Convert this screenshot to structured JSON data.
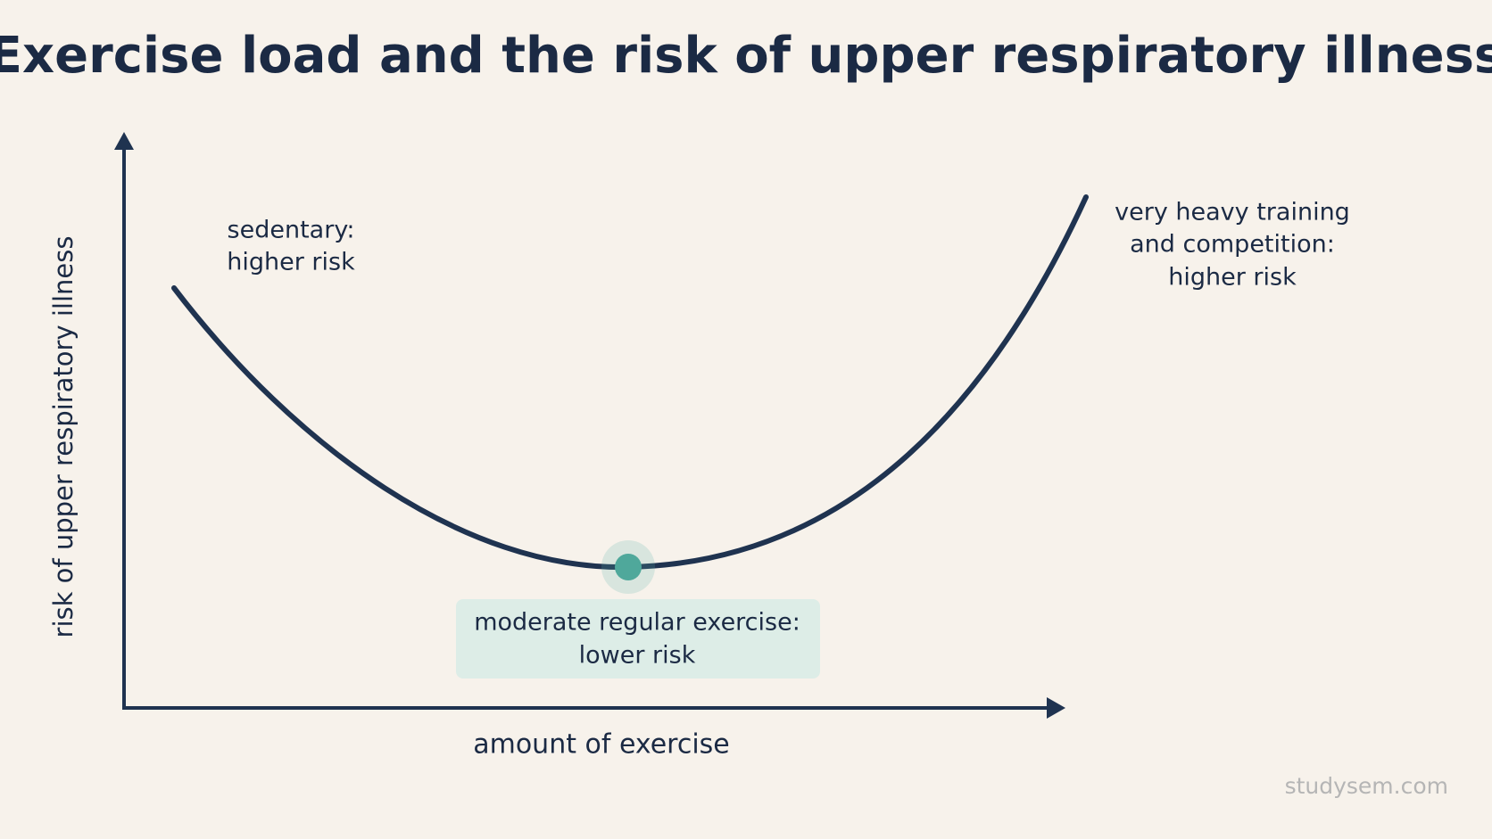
{
  "title": "Exercise load and the risk of upper respiratory illness",
  "y_axis_label": "risk of upper respiratory illness",
  "x_axis_label": "amount of exercise",
  "annotations": {
    "sedentary": [
      "sedentary:",
      "higher risk"
    ],
    "heavy": [
      "very heavy training",
      "and competition:",
      "higher risk"
    ],
    "moderate": [
      "moderate regular exercise:",
      "lower risk"
    ]
  },
  "watermark": "studysem.com"
}
